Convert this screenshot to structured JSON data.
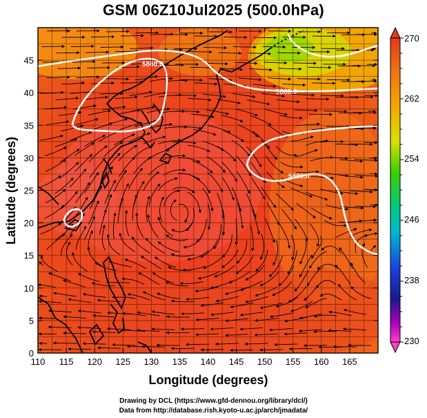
{
  "title": "GSM 06Z10Jul2025 (500.0hPa)",
  "credits": {
    "line1": "Drawing by DCL (https://www.gfd-dennou.org/library/dcl/)",
    "line2": "Data from http://database.rish.kyoto-u.ac.jp/arch/jmadata/"
  },
  "map": {
    "xlabel": "Longitude (degrees)",
    "ylabel": "Latitude  (degrees)",
    "lon_range": [
      110,
      170
    ],
    "lat_range": [
      0,
      50
    ],
    "lon_ticks": [
      "110",
      "115",
      "120",
      "125",
      "130",
      "135",
      "140",
      "145",
      "150",
      "155",
      "160",
      "165"
    ],
    "lat_ticks": [
      "0",
      "5",
      "10",
      "15",
      "20",
      "25",
      "30",
      "35",
      "40",
      "45"
    ],
    "contour_labels": [
      "5880.0",
      "5880.0",
      "5880.0"
    ],
    "colorbar": {
      "labels": [
        "270",
        "262",
        "254",
        "246",
        "238",
        "230"
      ],
      "range": [
        230,
        270
      ],
      "colors": {
        "top": "#e23b1c",
        "orange": "#f6a300",
        "yellow": "#d8e000",
        "green": "#3ad000",
        "cyan": "#00b8d0",
        "blue": "#1a40e0",
        "navy": "#1a1a8a",
        "magenta": "#d800b0",
        "bottom": "#ff40c8"
      }
    }
  }
}
